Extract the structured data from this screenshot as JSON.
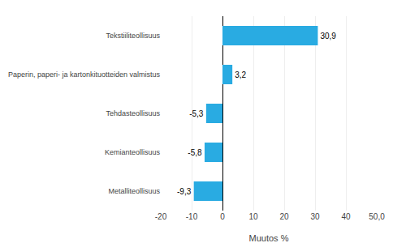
{
  "chart_data": {
    "type": "bar",
    "orientation": "horizontal",
    "categories": [
      "Metalliteollisuus",
      "Kemianteollisuus",
      "Tehdasteollisuus",
      "Paperin, paperi- ja kartonkituotteiden valmistus",
      "Tekstiiliteollisuus"
    ],
    "values": [
      -9.3,
      -5.8,
      -5.3,
      3.2,
      30.9
    ],
    "value_labels": [
      "-9,3",
      "-5,8",
      "-5,3",
      "3,2",
      "30,9"
    ],
    "data_labels": true,
    "color": "#29abe2",
    "xlabel": "Muutos %",
    "xlim": [
      -20,
      50
    ],
    "xticks": [
      -20,
      -10,
      0,
      10,
      20,
      30,
      40,
      {
        "value": 50,
        "label": "50,0"
      }
    ],
    "grid": true
  }
}
